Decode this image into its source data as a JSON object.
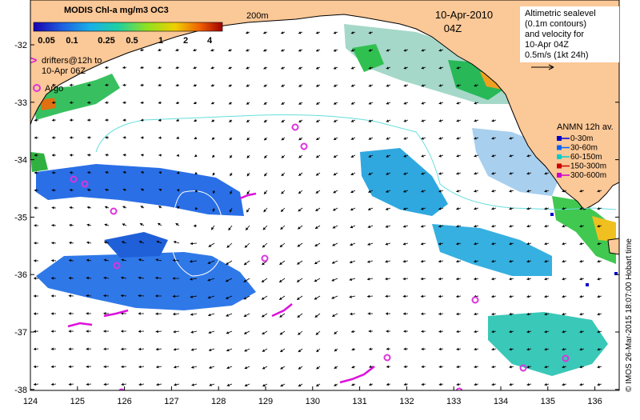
{
  "colorbar": {
    "title": "MODIS Chl-a mg/m3 OC3",
    "ticks": [
      "0.05",
      "0.1",
      "0.25",
      "0.5",
      "1",
      "2",
      "4"
    ]
  },
  "date": {
    "line1": "10-Apr-2010",
    "line2": "04Z"
  },
  "isobath_label": "200m",
  "drifters_legend": {
    "symbol": ">",
    "line1": "drifters@12h to",
    "line2": "10-Apr 06Z"
  },
  "argo_legend": {
    "label": "Argo"
  },
  "altimetry_legend": {
    "lines": [
      "Altimetric sealevel",
      "(0.1m contours)",
      "and velocity for",
      "10-Apr 04Z",
      "0.5m/s (1kt 24h)"
    ]
  },
  "anmn_legend": {
    "title": "ANMN 12h av.",
    "items": [
      {
        "label": "0-30m",
        "color": "#0000cc"
      },
      {
        "label": "30-60m",
        "color": "#0066ff"
      },
      {
        "label": "60-150m",
        "color": "#00cccc"
      },
      {
        "label": "150-300m",
        "color": "#cc0000"
      },
      {
        "label": "300-600m",
        "color": "#cc00cc"
      }
    ]
  },
  "credit": "© IMOS 26-Mar-2015 18:07:00 Hobart time",
  "axes": {
    "x_ticks": [
      "124",
      "125",
      "126",
      "127",
      "128",
      "129",
      "130",
      "131",
      "132",
      "133",
      "134",
      "135",
      "136"
    ],
    "y_ticks": [
      "-32",
      "-33",
      "-34",
      "-35",
      "-36",
      "-37",
      "-38"
    ]
  },
  "colors": {
    "land": "#fbc897",
    "coast_contour": "#66dddd",
    "argo": "#dd33dd",
    "drifter": "#dd11dd"
  }
}
